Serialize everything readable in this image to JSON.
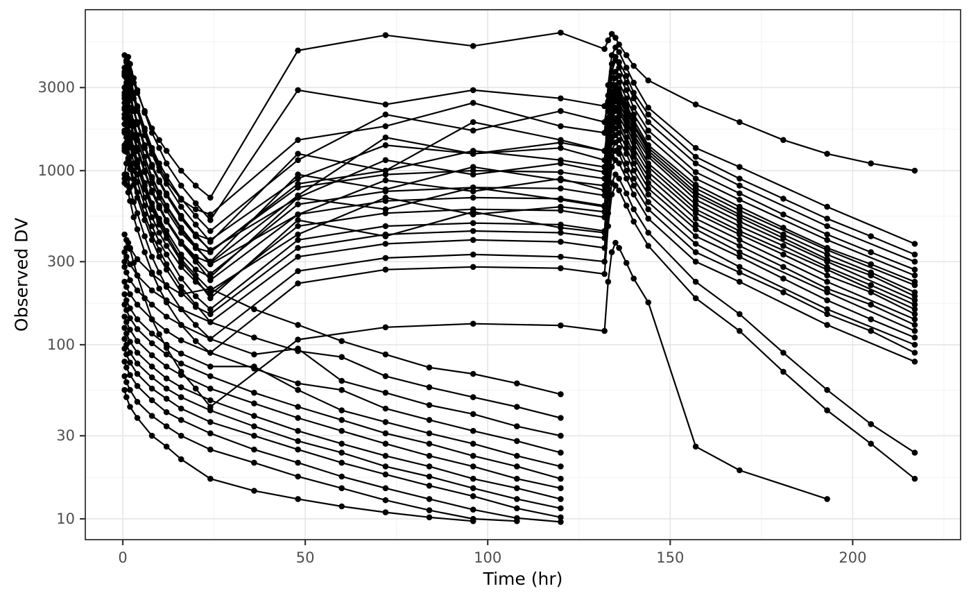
{
  "chart_data": {
    "type": "line",
    "title": "",
    "xlabel": "Time (hr)",
    "ylabel": "Observed DV",
    "x_scale": "linear",
    "y_scale": "log10",
    "xlim": [
      -11,
      230
    ],
    "ylim": [
      7.6,
      8400
    ],
    "x_ticks": [
      0,
      50,
      100,
      150,
      200
    ],
    "y_ticks": [
      10,
      30,
      100,
      300,
      1000,
      3000
    ],
    "x_minor": [
      25,
      75,
      125,
      175,
      225
    ],
    "y_minor": [
      17.3,
      54.8,
      173,
      548,
      1732,
      5477
    ],
    "grid": true,
    "legend": "none",
    "style": {
      "data_color": "#000000",
      "grid_major": "#e4e4e4",
      "grid_minor": "#f2f2f2",
      "panel_border": "#333333",
      "tick_color": "#333333",
      "tick_label_color": "#4d4d4d",
      "axis_title_color": "#000000",
      "background": "#ffffff"
    },
    "groups": [
      {
        "name": "multiple-dose-subjects",
        "t": [
          0.5,
          1,
          1.5,
          2,
          3,
          4,
          6,
          8,
          10,
          12,
          16,
          20,
          24,
          48,
          72,
          96,
          120,
          132,
          133,
          134,
          135,
          136,
          138,
          140,
          144,
          157,
          169,
          181,
          193,
          205,
          217
        ],
        "series": [
          [
            3900,
            4300,
            4100,
            3700,
            3200,
            2800,
            2200,
            1750,
            1500,
            1300,
            1000,
            820,
            700,
            4900,
            6000,
            5200,
            6200,
            5000,
            5600,
            6100,
            5800,
            5300,
            4600,
            4000,
            3300,
            2400,
            1900,
            1500,
            1250,
            1100,
            1000
          ],
          [
            4600,
            4200,
            3900,
            3500,
            2800,
            2300,
            1700,
            1300,
            1050,
            880,
            680,
            600,
            560,
            1500,
            1800,
            2450,
            1800,
            1650,
            3100,
            4600,
            5100,
            4800,
            3900,
            3200,
            2300,
            1350,
            1050,
            null,
            620,
            null,
            380
          ],
          [
            3600,
            4300,
            4500,
            4100,
            3400,
            2900,
            2150,
            1650,
            1350,
            1100,
            820,
            650,
            520,
            2900,
            2400,
            2900,
            2600,
            2350,
            2700,
            4100,
            4500,
            4200,
            3500,
            2800,
            2100,
            1200,
            900,
            690,
            530,
            420,
            330
          ],
          [
            3500,
            3900,
            3700,
            3300,
            2750,
            2350,
            1750,
            1350,
            1100,
            930,
            690,
            550,
            450,
            1150,
            2100,
            1700,
            2200,
            1900,
            2500,
            3700,
            4300,
            3900,
            3200,
            2600,
            1900,
            1100,
            820,
            null,
            480,
            null,
            300
          ],
          [
            3700,
            3400,
            3100,
            2800,
            2250,
            1900,
            1400,
            1070,
            870,
            730,
            540,
            430,
            400,
            900,
            1400,
            1250,
            1350,
            1150,
            2200,
            3400,
            3700,
            3500,
            2900,
            2300,
            1700,
            980,
            740,
            560,
            430,
            340,
            270
          ],
          [
            2700,
            3200,
            3400,
            3100,
            2600,
            2200,
            1600,
            1250,
            1000,
            840,
            620,
            490,
            390,
            1250,
            1000,
            1300,
            1150,
            1050,
            2000,
            3100,
            3400,
            3200,
            2600,
            2100,
            1550,
            900,
            680,
            null,
            400,
            null,
            250
          ],
          [
            2800,
            3100,
            2950,
            2650,
            2200,
            1850,
            1350,
            1050,
            860,
            720,
            530,
            420,
            350,
            700,
            1150,
            950,
            1100,
            980,
            1850,
            2850,
            3100,
            2950,
            2400,
            1950,
            1400,
            830,
            620,
            470,
            360,
            290,
            230
          ],
          [
            3000,
            2750,
            2500,
            2250,
            1800,
            1500,
            1100,
            850,
            700,
            590,
            440,
            360,
            340,
            840,
            1000,
            1900,
            1500,
            1300,
            1750,
            2700,
            3000,
            2800,
            2300,
            1850,
            1350,
            790,
            590,
            null,
            350,
            null,
            220
          ],
          [
            2300,
            2700,
            2900,
            2650,
            2200,
            1900,
            1400,
            1080,
            880,
            740,
            550,
            430,
            345,
            800,
            950,
            1000,
            980,
            900,
            1700,
            2600,
            2900,
            2700,
            2200,
            1800,
            1300,
            750,
            560,
            430,
            330,
            260,
            200
          ],
          [
            2450,
            2750,
            2600,
            2300,
            1900,
            1600,
            1200,
            900,
            740,
            620,
            460,
            360,
            300,
            950,
            780,
            1050,
            880,
            820,
            1600,
            2450,
            2750,
            2600,
            2100,
            1700,
            1250,
            720,
            540,
            410,
            310,
            250,
            190
          ],
          [
            2600,
            2400,
            2200,
            2000,
            1600,
            1350,
            1000,
            760,
            620,
            520,
            390,
            320,
            295,
            720,
            1550,
            1250,
            1450,
            1300,
            1550,
            2350,
            2600,
            2450,
            2000,
            1600,
            1200,
            680,
            510,
            null,
            300,
            null,
            180
          ],
          [
            2000,
            2350,
            2500,
            2300,
            1900,
            1600,
            1200,
            920,
            750,
            630,
            470,
            370,
            290,
            560,
            880,
            760,
            900,
            770,
            1450,
            2200,
            2500,
            2300,
            1900,
            1550,
            1100,
            640,
            480,
            370,
            280,
            220,
            170
          ],
          [
            2100,
            2300,
            2200,
            1950,
            1600,
            1350,
            1000,
            770,
            630,
            520,
            390,
            310,
            255,
            640,
            760,
            800,
            790,
            720,
            1350,
            2100,
            2300,
            2200,
            1800,
            1450,
            1050,
            600,
            450,
            null,
            270,
            null,
            160
          ],
          [
            2250,
            2050,
            1850,
            1650,
            1350,
            1150,
            850,
            650,
            530,
            450,
            330,
            270,
            245,
            700,
            600,
            800,
            680,
            620,
            1300,
            1950,
            2200,
            2050,
            1700,
            1350,
            980,
            570,
            430,
            330,
            250,
            200,
            150
          ],
          [
            1650,
            1950,
            2050,
            1900,
            1550,
            1300,
            980,
            750,
            610,
            510,
            380,
            300,
            235,
            560,
            670,
            700,
            690,
            630,
            1200,
            1800,
            2000,
            1900,
            1550,
            1250,
            920,
            530,
            400,
            null,
            230,
            null,
            140
          ],
          [
            1700,
            1900,
            1800,
            1600,
            1300,
            1100,
            820,
            620,
            510,
            430,
            310,
            250,
            205,
            430,
            700,
            560,
            620,
            580,
            1100,
            1700,
            1900,
            1800,
            1450,
            1200,
            850,
            490,
            370,
            280,
            210,
            170,
            130
          ],
          [
            1850,
            1700,
            1550,
            1400,
            1100,
            950,
            700,
            540,
            440,
            370,
            280,
            230,
            195,
            480,
            570,
            600,
            590,
            540,
            1050,
            1550,
            1750,
            1650,
            1350,
            1100,
            790,
            460,
            340,
            null,
            200,
            null,
            120
          ],
          [
            1350,
            1550,
            1650,
            1500,
            1250,
            1050,
            780,
            600,
            490,
            410,
            300,
            240,
            185,
            520,
            420,
            580,
            470,
            440,
            950,
            1450,
            1600,
            1500,
            1250,
            1000,
            730,
            420,
            320,
            240,
            180,
            140,
            110
          ],
          [
            1300,
            1450,
            1350,
            1200,
            1000,
            860,
            630,
            480,
            390,
            330,
            240,
            190,
            160,
            400,
            480,
            500,
            490,
            450,
            860,
            1300,
            1450,
            1350,
            1100,
            900,
            660,
            380,
            280,
            null,
            160,
            null,
            100
          ],
          [
            1400,
            1280,
            1150,
            1020,
            830,
            700,
            520,
            400,
            320,
            270,
            200,
            165,
            150,
            360,
            430,
            450,
            440,
            410,
            780,
            1200,
            1300,
            1250,
            1000,
            820,
            600,
            340,
            260,
            200,
            150,
            120,
            90
          ],
          [
            950,
            1100,
            1180,
            1080,
            890,
            750,
            560,
            430,
            350,
            290,
            215,
            170,
            135,
            320,
            380,
            400,
            390,
            360,
            690,
            1050,
            1150,
            1100,
            900,
            730,
            530,
            300,
            230,
            null,
            130,
            null,
            80
          ],
          [
            850,
            950,
            900,
            800,
            660,
            570,
            420,
            320,
            260,
            215,
            160,
            130,
            108,
            265,
            315,
            330,
            320,
            300,
            570,
            850,
            950,
            900,
            740,
            600,
            440,
            230,
            150,
            90,
            55,
            35,
            24
          ],
          [
            900,
            830,
            750,
            670,
            540,
            460,
            340,
            260,
            210,
            175,
            130,
            105,
            90,
            225,
            270,
            280,
            275,
            255,
            480,
            730,
            820,
            770,
            630,
            510,
            370,
            185,
            120,
            70,
            42,
            27,
            17
          ],
          [
            300,
            360,
            385,
            355,
            295,
            250,
            185,
            140,
            115,
            96,
            70,
            56,
            44,
            107,
            126,
            132,
            129,
            120,
            230,
            340,
            385,
            360,
            295,
            240,
            175,
            26,
            19,
            null,
            13,
            null,
            null
          ]
        ]
      },
      {
        "name": "low-concentration-subjects",
        "t": [
          0.5,
          1,
          2,
          4,
          8,
          12,
          16,
          24,
          36,
          48,
          60,
          72,
          84,
          96,
          108,
          120
        ],
        "series": [
          [
            430,
            400,
            360,
            310,
            255,
            220,
            195,
            210,
            160,
            130,
            105,
            88,
            74,
            68,
            60,
            52
          ],
          [
            340,
            320,
            290,
            250,
            205,
            180,
            160,
            135,
            110,
            92,
            85,
            66,
            57,
            50,
            44,
            38
          ],
          [
            280,
            260,
            235,
            205,
            170,
            145,
            130,
            108,
            88,
            95,
            62,
            53,
            45,
            40,
            34,
            30
          ],
          [
            230,
            215,
            195,
            170,
            140,
            120,
            106,
            90,
            73,
            60,
            55,
            43,
            37,
            32,
            28,
            24
          ],
          [
            195,
            180,
            162,
            140,
            116,
            100,
            89,
            75,
            75,
            55,
            42,
            36,
            31,
            27,
            23,
            20
          ],
          [
            170,
            158,
            142,
            123,
            102,
            88,
            78,
            66,
            53,
            44,
            37,
            31,
            27,
            23,
            20,
            17
          ],
          [
            145,
            135,
            122,
            105,
            87,
            75,
            67,
            56,
            46,
            38,
            32,
            27,
            23,
            20,
            17,
            15
          ],
          [
            125,
            116,
            104,
            90,
            75,
            64,
            57,
            48,
            39,
            32,
            27,
            23,
            20,
            17,
            15,
            13
          ],
          [
            108,
            100,
            90,
            78,
            65,
            56,
            50,
            42,
            34,
            28,
            24,
            20,
            17.5,
            15,
            13,
            11.5
          ],
          [
            95,
            88,
            79,
            68,
            56,
            49,
            43,
            36,
            30,
            25,
            21,
            18,
            15.5,
            13.5,
            11.5,
            10.2
          ],
          [
            80,
            74,
            67,
            58,
            48,
            41,
            37,
            31,
            25,
            21,
            17.5,
            15,
            13,
            11.3,
            10.1,
            9.6
          ],
          [
            66,
            61,
            55,
            47,
            39,
            34,
            30,
            25,
            21,
            17.5,
            15,
            12.8,
            11.2,
            10,
            9.7,
            null
          ],
          [
            55,
            50,
            44,
            38,
            30,
            26,
            22,
            17,
            14.5,
            13,
            11.8,
            10.9,
            10.2,
            9.7,
            null,
            null
          ]
        ]
      }
    ]
  }
}
